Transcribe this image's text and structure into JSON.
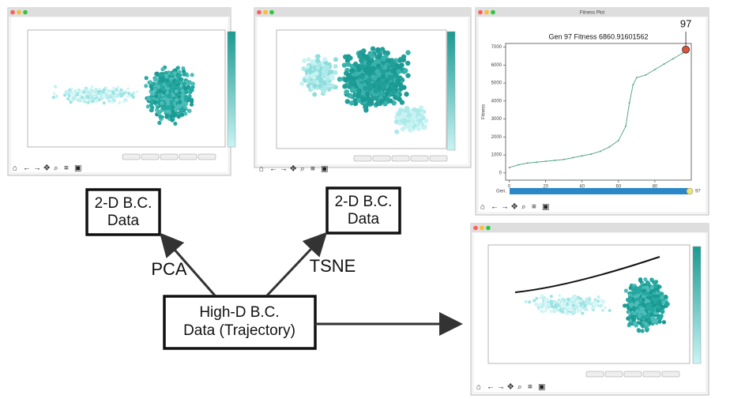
{
  "diagram": {
    "boxes": [
      {
        "lines": [
          "2-D B.C.",
          "Data"
        ]
      },
      {
        "lines": [
          "2-D B.C.",
          "Data"
        ]
      },
      {
        "lines": [
          "High-D B.C.",
          "Data (Trajectory)"
        ]
      }
    ],
    "arrow_labels": [
      "PCA",
      "TSNE"
    ]
  },
  "fitness_window": {
    "window_title": "Fitness Plot",
    "callout": "97",
    "slider_label": "Gen.",
    "slider_value": "97"
  },
  "chart_data": {
    "type": "line",
    "title": "Gen 97  Fitness 6860.91601562",
    "y_label": "Fitness",
    "color": "#5aa88a",
    "x": [
      0,
      5,
      10,
      15,
      20,
      25,
      30,
      35,
      40,
      45,
      50,
      55,
      60,
      64,
      66,
      68,
      70,
      75,
      80,
      85,
      90,
      95,
      97
    ],
    "values": [
      300,
      450,
      550,
      600,
      650,
      700,
      750,
      850,
      950,
      1050,
      1200,
      1450,
      1800,
      2600,
      3900,
      4900,
      5300,
      5450,
      5750,
      6050,
      6350,
      6650,
      6860
    ],
    "xlim": [
      -2,
      100
    ],
    "xticks": [
      0,
      20,
      40,
      60,
      80
    ],
    "ylim": [
      -400,
      7200
    ],
    "yticks": [
      0,
      1000,
      2000,
      3000,
      4000,
      5000,
      6000,
      7000
    ]
  }
}
